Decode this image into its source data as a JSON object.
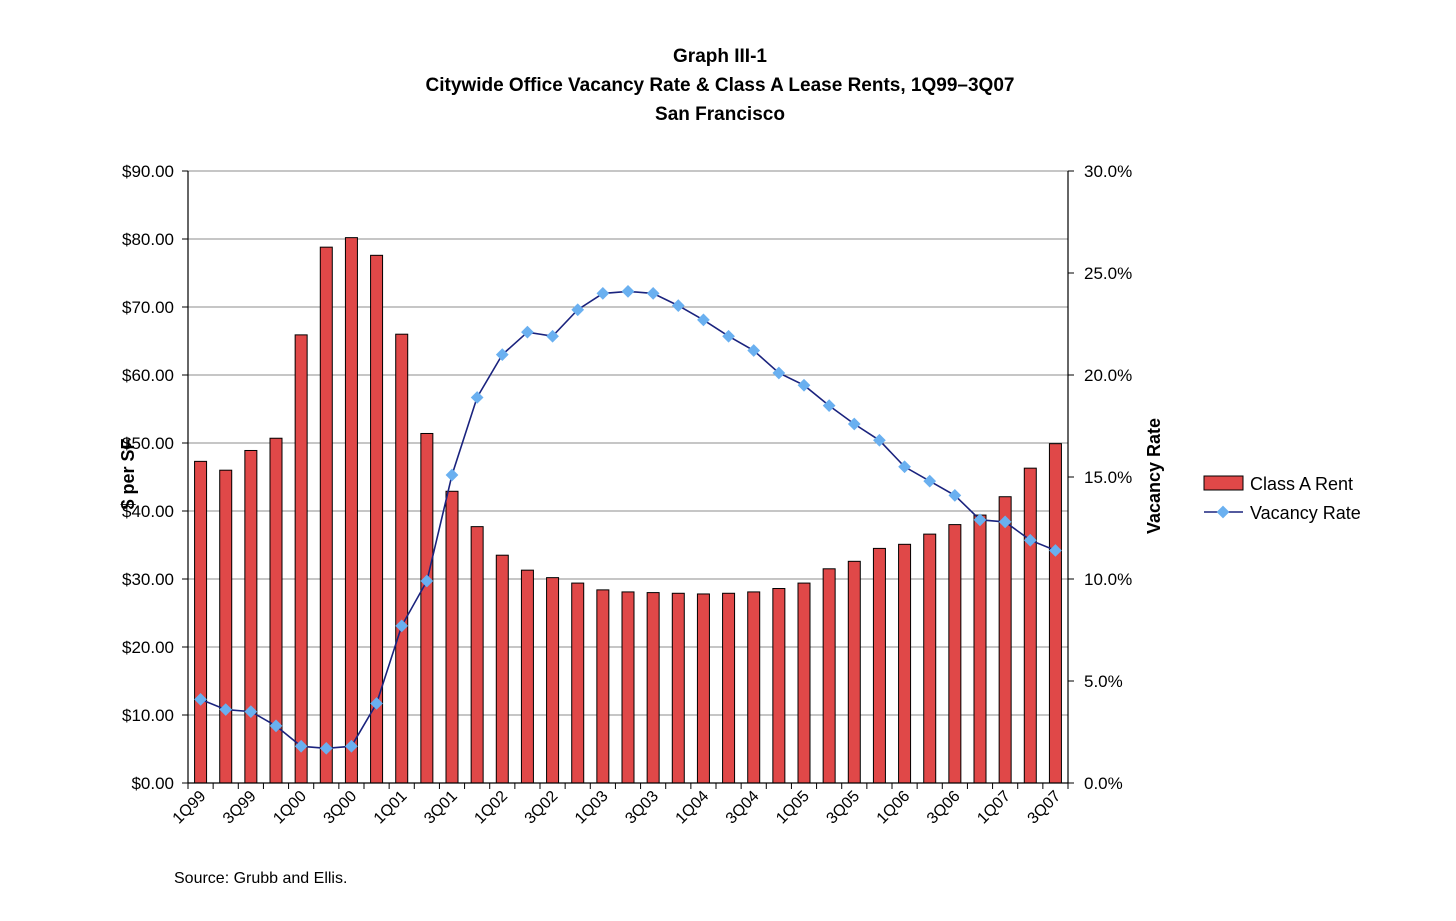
{
  "chart_data": {
    "type": "bar+line",
    "title": "Graph III-1",
    "subtitle": "Citywide Office Vacancy Rate & Class A Lease Rents, 1Q99–3Q07",
    "subtitle2": "San Francisco",
    "ylabel": "$ per SF",
    "y2label": "Vacancy Rate",
    "ylim": [
      0,
      90
    ],
    "y2lim": [
      0,
      30
    ],
    "yticks": [
      "$0.00",
      "$10.00",
      "$20.00",
      "$30.00",
      "$40.00",
      "$50.00",
      "$60.00",
      "$70.00",
      "$80.00",
      "$90.00"
    ],
    "y2ticks": [
      "0.0%",
      "5.0%",
      "10.0%",
      "15.0%",
      "20.0%",
      "25.0%",
      "30.0%"
    ],
    "categories": [
      "1Q99",
      "2Q99",
      "3Q99",
      "4Q99",
      "1Q00",
      "2Q00",
      "3Q00",
      "4Q00",
      "1Q01",
      "2Q01",
      "3Q01",
      "4Q01",
      "1Q02",
      "2Q02",
      "3Q02",
      "4Q02",
      "1Q03",
      "2Q03",
      "3Q03",
      "4Q03",
      "1Q04",
      "2Q04",
      "3Q04",
      "4Q04",
      "1Q05",
      "2Q05",
      "3Q05",
      "4Q05",
      "1Q06",
      "2Q06",
      "3Q06",
      "4Q06",
      "1Q07",
      "2Q07",
      "3Q07"
    ],
    "xtick_labels": [
      "1Q99",
      "3Q99",
      "1Q00",
      "3Q00",
      "1Q01",
      "3Q01",
      "1Q02",
      "3Q02",
      "1Q03",
      "3Q03",
      "1Q04",
      "3Q04",
      "1Q05",
      "3Q05",
      "1Q06",
      "3Q06",
      "1Q07",
      "3Q07"
    ],
    "series": [
      {
        "name": "Class A Rent",
        "type": "bar",
        "color": "#e04848",
        "values": [
          47.3,
          46.0,
          48.9,
          50.7,
          65.9,
          78.8,
          80.2,
          77.6,
          66.0,
          51.4,
          42.9,
          37.7,
          33.5,
          31.3,
          30.2,
          29.4,
          28.4,
          28.1,
          28.0,
          27.9,
          27.8,
          27.9,
          28.1,
          28.6,
          29.4,
          31.5,
          32.6,
          34.5,
          35.1,
          36.6,
          38.0,
          39.4,
          42.1,
          46.3,
          49.9
        ]
      },
      {
        "name": "Vacancy Rate",
        "type": "line",
        "axis": "right",
        "color": "#1a237e",
        "marker_color": "#6ab0f0",
        "values": [
          4.1,
          3.6,
          3.5,
          2.8,
          1.8,
          1.7,
          1.8,
          3.9,
          7.7,
          9.9,
          15.1,
          18.9,
          21.0,
          22.1,
          21.9,
          23.2,
          24.0,
          24.1,
          24.0,
          23.4,
          22.7,
          21.9,
          21.2,
          20.1,
          19.5,
          18.5,
          17.6,
          16.8,
          15.5,
          14.8,
          14.1,
          12.9,
          12.8,
          11.9,
          11.4
        ]
      }
    ],
    "legend": {
      "placement": "right",
      "items": [
        "Class A Rent",
        "Vacancy Rate"
      ]
    }
  },
  "source": "Source: Grubb and Ellis."
}
